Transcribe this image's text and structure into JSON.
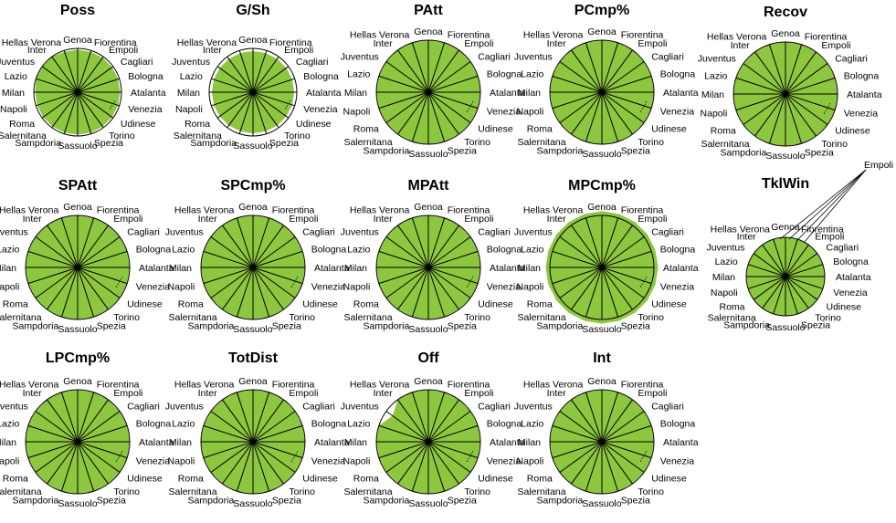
{
  "chart_data": {
    "type": "radar",
    "categories": [
      "Genoa",
      "Fiorentina",
      "Empoli",
      "Cagliari",
      "Bologna",
      "Atalanta",
      "Venezia",
      "Udinese",
      "Torino",
      "Spezia",
      "Sassuolo",
      "Sampdoria",
      "Salernitana",
      "Roma",
      "Napoli",
      "Milan",
      "Lazio",
      "Juventus",
      "Inter",
      "Hellas Verona"
    ],
    "colors": {
      "fill": "#8DC63F",
      "stroke": "#000000"
    },
    "panels": [
      {
        "title": "Poss",
        "radius_max": 1.0,
        "values": [
          0.97,
          0.97,
          0.97,
          0.97,
          0.97,
          0.97,
          0.97,
          0.97,
          0.97,
          0.97,
          0.97,
          0.97,
          0.97,
          0.97,
          0.97,
          0.97,
          1.0,
          1.0,
          1.0,
          0.97
        ]
      },
      {
        "title": "G/Sh",
        "radius_max": 1.0,
        "values": [
          0.94,
          0.94,
          0.94,
          0.94,
          0.94,
          0.94,
          0.94,
          0.94,
          0.94,
          0.94,
          0.94,
          0.94,
          0.94,
          0.94,
          0.94,
          0.94,
          0.94,
          0.94,
          0.94,
          0.94
        ]
      },
      {
        "title": "PAtt",
        "radius_max": 1.0,
        "values": [
          1,
          1,
          1,
          1,
          1,
          1,
          1,
          1,
          1,
          1,
          1,
          1,
          1,
          1,
          1,
          1,
          1,
          1,
          1,
          1
        ]
      },
      {
        "title": "PCmp%",
        "radius_max": 1.0,
        "values": [
          1,
          1,
          1,
          1,
          1,
          1,
          1,
          1,
          1,
          1,
          1,
          1,
          1,
          1,
          1,
          1,
          1,
          1,
          1,
          1
        ]
      },
      {
        "title": "Recov",
        "radius_max": 1.0,
        "values": [
          1,
          1,
          1,
          1,
          1,
          1,
          1,
          1,
          1,
          1,
          1,
          1,
          1,
          1,
          1,
          1,
          1,
          1,
          1,
          1
        ]
      },
      {
        "title": "SPAtt",
        "radius_max": 1.0,
        "values": [
          1,
          1,
          1,
          1,
          1,
          1,
          1,
          1,
          1,
          1,
          1,
          1,
          1,
          1,
          1,
          1,
          1,
          1,
          1,
          1
        ]
      },
      {
        "title": "SPCmp%",
        "radius_max": 1.0,
        "values": [
          1,
          1,
          1,
          1,
          1,
          1,
          1,
          1,
          1,
          1,
          1,
          1,
          1,
          1,
          1,
          1,
          1,
          1,
          1,
          1
        ]
      },
      {
        "title": "MPAtt",
        "radius_max": 1.0,
        "values": [
          1,
          1,
          1,
          1,
          1,
          1,
          1,
          1,
          1,
          1,
          1,
          1,
          1,
          1,
          1,
          1,
          1,
          1,
          1,
          1
        ]
      },
      {
        "title": "MPCmp%",
        "radius_max": 1.0,
        "values": [
          1.08,
          1.08,
          1.08,
          1.08,
          1.08,
          1.08,
          1.08,
          1.08,
          1.08,
          1.08,
          1.08,
          1.08,
          1.08,
          1.08,
          1.08,
          1.08,
          1.08,
          1.08,
          1.08,
          1.08
        ]
      },
      {
        "title": "TklWin",
        "radius_max": 1.0,
        "values": [
          1,
          1,
          1,
          1,
          1,
          1,
          1,
          1,
          1,
          1,
          1,
          1,
          1,
          1,
          1,
          1,
          1,
          1,
          1,
          1
        ]
      },
      {
        "title": "LPCmp%",
        "radius_max": 1.0,
        "values": [
          1,
          1,
          1,
          1,
          1,
          1,
          1,
          1,
          1,
          1,
          1,
          1,
          1,
          1,
          1,
          1,
          1,
          1,
          1,
          1
        ]
      },
      {
        "title": "TotDist",
        "radius_max": 1.0,
        "values": [
          1,
          1,
          1,
          1,
          1,
          1,
          1,
          1,
          1,
          1,
          1,
          1,
          1,
          1,
          1,
          1,
          1,
          1,
          1,
          1
        ]
      },
      {
        "title": "Off",
        "radius_max": 1.0,
        "values": [
          1,
          1,
          1,
          1,
          1,
          1,
          1,
          1,
          1,
          1,
          1,
          1,
          1,
          1,
          1,
          1,
          1,
          0.85,
          1,
          1
        ]
      },
      {
        "title": "Int",
        "radius_max": 1.0,
        "values": [
          1,
          1,
          1,
          1,
          1,
          1,
          1,
          1,
          1,
          1,
          1,
          1,
          1,
          1,
          1,
          1,
          1,
          1,
          1,
          1
        ]
      }
    ]
  }
}
